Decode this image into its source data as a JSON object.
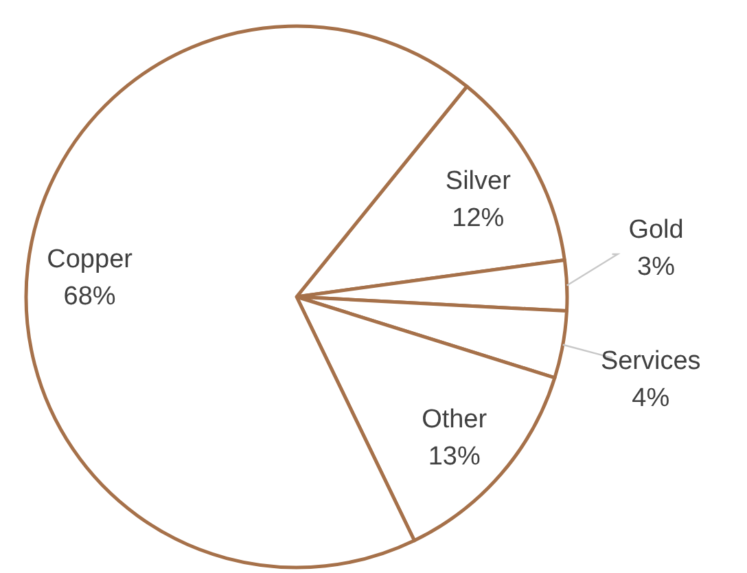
{
  "chart_data": {
    "type": "pie",
    "categories": [
      "Silver",
      "Gold",
      "Services",
      "Other",
      "Copper"
    ],
    "values": [
      12,
      3,
      4,
      13,
      68
    ],
    "colors": [
      "#ffffff",
      "#ffffff",
      "#ffffff",
      "#ffffff",
      "#ffffff"
    ],
    "value_labels": [
      "12%",
      "3%",
      "4%",
      "13%",
      "68%"
    ]
  }
}
